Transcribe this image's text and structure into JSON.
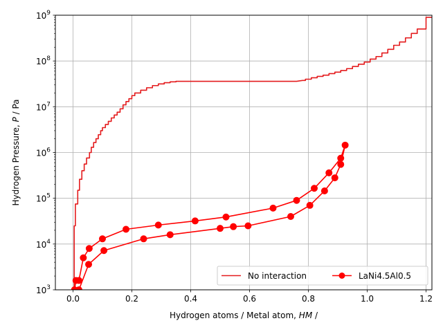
{
  "chart_data": {
    "type": "line",
    "xlabel": "Hydrogen atoms / Metal atom, ",
    "xlabel_italic": "HM",
    "xlabel_suffix": " /",
    "ylabel": "Hydrogen Pressure, ",
    "ylabel_italic": "P",
    "ylabel_suffix": " / Pa",
    "xlim": [
      -0.06,
      1.22
    ],
    "ylim_log10": [
      3,
      9
    ],
    "y_scale": "log",
    "grid": true,
    "legend_position": "lower-right",
    "x_ticks": [
      {
        "value": 0.0,
        "label": "0.0"
      },
      {
        "value": 0.2,
        "label": "0.2"
      },
      {
        "value": 0.4,
        "label": "0.4"
      },
      {
        "value": 0.6,
        "label": "0.6"
      },
      {
        "value": 0.8,
        "label": "0.8"
      },
      {
        "value": 1.0,
        "label": "1.0"
      },
      {
        "value": 1.2,
        "label": "1.2"
      }
    ],
    "y_ticks": [
      {
        "value": 3,
        "base": "10",
        "exp": "3"
      },
      {
        "value": 4,
        "base": "10",
        "exp": "4"
      },
      {
        "value": 5,
        "base": "10",
        "exp": "5"
      },
      {
        "value": 6,
        "base": "10",
        "exp": "6"
      },
      {
        "value": 7,
        "base": "10",
        "exp": "7"
      },
      {
        "value": 8,
        "base": "10",
        "exp": "8"
      },
      {
        "value": 9,
        "base": "10",
        "exp": "9"
      }
    ],
    "series": [
      {
        "name": "No interaction",
        "style": "step-line",
        "color": "#e41a1c",
        "points": [
          [
            0.0,
            1000
          ],
          [
            0.004,
            1000
          ],
          [
            0.004,
            25000
          ],
          [
            0.008,
            25000
          ],
          [
            0.008,
            75000
          ],
          [
            0.016,
            75000
          ],
          [
            0.016,
            150000
          ],
          [
            0.022,
            150000
          ],
          [
            0.022,
            260000
          ],
          [
            0.03,
            260000
          ],
          [
            0.03,
            400000
          ],
          [
            0.038,
            400000
          ],
          [
            0.038,
            560000
          ],
          [
            0.046,
            560000
          ],
          [
            0.046,
            760000
          ],
          [
            0.056,
            760000
          ],
          [
            0.056,
            1000000
          ],
          [
            0.062,
            1000000
          ],
          [
            0.062,
            1300000
          ],
          [
            0.07,
            1300000
          ],
          [
            0.07,
            1650000
          ],
          [
            0.078,
            1650000
          ],
          [
            0.078,
            2000000
          ],
          [
            0.086,
            2000000
          ],
          [
            0.086,
            2450000
          ],
          [
            0.094,
            2450000
          ],
          [
            0.094,
            3000000
          ],
          [
            0.1,
            3000000
          ],
          [
            0.1,
            3500000
          ],
          [
            0.11,
            3500000
          ],
          [
            0.11,
            4100000
          ],
          [
            0.12,
            4100000
          ],
          [
            0.12,
            4800000
          ],
          [
            0.13,
            4800000
          ],
          [
            0.13,
            5700000
          ],
          [
            0.14,
            5700000
          ],
          [
            0.14,
            6600000
          ],
          [
            0.15,
            6600000
          ],
          [
            0.15,
            7600000
          ],
          [
            0.16,
            7600000
          ],
          [
            0.16,
            9000000
          ],
          [
            0.17,
            9000000
          ],
          [
            0.17,
            11000000
          ],
          [
            0.18,
            11000000
          ],
          [
            0.18,
            13000000
          ],
          [
            0.19,
            13000000
          ],
          [
            0.19,
            15000000
          ],
          [
            0.2,
            15000000
          ],
          [
            0.2,
            17500000
          ],
          [
            0.21,
            17500000
          ],
          [
            0.21,
            20000000
          ],
          [
            0.23,
            20000000
          ],
          [
            0.23,
            23000000
          ],
          [
            0.25,
            23000000
          ],
          [
            0.25,
            26000000
          ],
          [
            0.27,
            26000000
          ],
          [
            0.27,
            29000000
          ],
          [
            0.29,
            29000000
          ],
          [
            0.29,
            31500000
          ],
          [
            0.31,
            31500000
          ],
          [
            0.31,
            33500000
          ],
          [
            0.33,
            33500000
          ],
          [
            0.33,
            35000000
          ],
          [
            0.35,
            35000000
          ],
          [
            0.35,
            36000000
          ],
          [
            0.76,
            36000000
          ],
          [
            0.78,
            37500000
          ],
          [
            0.79,
            37500000
          ],
          [
            0.79,
            40000000
          ],
          [
            0.81,
            40000000
          ],
          [
            0.81,
            43000000
          ],
          [
            0.83,
            43000000
          ],
          [
            0.83,
            46000000
          ],
          [
            0.85,
            46000000
          ],
          [
            0.85,
            49000000
          ],
          [
            0.87,
            49000000
          ],
          [
            0.87,
            53000000
          ],
          [
            0.89,
            53000000
          ],
          [
            0.89,
            57000000
          ],
          [
            0.91,
            57000000
          ],
          [
            0.91,
            62000000
          ],
          [
            0.93,
            62000000
          ],
          [
            0.93,
            68000000
          ],
          [
            0.95,
            68000000
          ],
          [
            0.95,
            76000000
          ],
          [
            0.97,
            76000000
          ],
          [
            0.97,
            85000000
          ],
          [
            0.99,
            85000000
          ],
          [
            0.99,
            95000000
          ],
          [
            1.01,
            95000000
          ],
          [
            1.01,
            110000000
          ],
          [
            1.03,
            110000000
          ],
          [
            1.03,
            125000000
          ],
          [
            1.05,
            125000000
          ],
          [
            1.05,
            150000000
          ],
          [
            1.07,
            150000000
          ],
          [
            1.07,
            180000000
          ],
          [
            1.09,
            180000000
          ],
          [
            1.09,
            220000000
          ],
          [
            1.11,
            220000000
          ],
          [
            1.11,
            260000000
          ],
          [
            1.13,
            260000000
          ],
          [
            1.13,
            320000000
          ],
          [
            1.15,
            320000000
          ],
          [
            1.15,
            400000000
          ],
          [
            1.17,
            400000000
          ],
          [
            1.17,
            500000000
          ],
          [
            1.2,
            500000000
          ],
          [
            1.2,
            900000000
          ],
          [
            1.23,
            900000000
          ],
          [
            1.23,
            1000000000
          ]
        ]
      },
      {
        "name": "LaNi4.5Al0.5",
        "style": "line-markers",
        "color": "#ff0000",
        "points": [
          [
            0.005,
            1000
          ],
          [
            0.01,
            1600
          ],
          [
            0.02,
            1600
          ],
          [
            0.035,
            5000
          ],
          [
            0.055,
            8000
          ],
          [
            0.1,
            13000
          ],
          [
            0.18,
            21000
          ],
          [
            0.29,
            26000
          ],
          [
            0.415,
            32000
          ],
          [
            0.52,
            39000
          ],
          [
            0.68,
            61000
          ],
          [
            0.76,
            90000
          ],
          [
            0.82,
            165000
          ],
          [
            0.87,
            360000
          ],
          [
            0.91,
            750000
          ],
          [
            0.925,
            1450000
          ],
          [
            0.91,
            550000
          ],
          [
            0.89,
            280000
          ],
          [
            0.855,
            145000
          ],
          [
            0.805,
            70000
          ],
          [
            0.74,
            40000
          ],
          [
            0.595,
            25000
          ],
          [
            0.545,
            24000
          ],
          [
            0.5,
            22000
          ],
          [
            0.33,
            16000
          ],
          [
            0.24,
            13000
          ],
          [
            0.105,
            7200
          ],
          [
            0.053,
            3600
          ],
          [
            0.02,
            1000
          ]
        ]
      }
    ]
  }
}
